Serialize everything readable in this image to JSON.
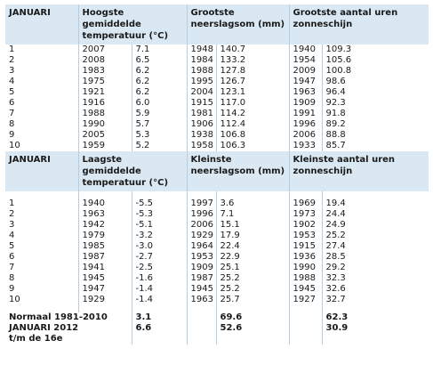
{
  "top": {
    "headers": [
      "JANUARI",
      "Hoogste gemiddelde temperatuur (°C)",
      "Grootste neerslagsom (mm)",
      "Grootste aantal uren zonneschijn"
    ],
    "rows": [
      {
        "rank": "1",
        "t_year": "2007",
        "t_val": "7.1",
        "n_year": "1948",
        "n_val": "140.7",
        "z_year": "1940",
        "z_val": "109.3"
      },
      {
        "rank": "2",
        "t_year": "2008",
        "t_val": "6.5",
        "n_year": "1984",
        "n_val": "133.2",
        "z_year": "1954",
        "z_val": "105.6"
      },
      {
        "rank": "3",
        "t_year": "1983",
        "t_val": "6.2",
        "n_year": "1988",
        "n_val": "127.8",
        "z_year": "2009",
        "z_val": "100.8"
      },
      {
        "rank": "4",
        "t_year": "1975",
        "t_val": "6.2",
        "n_year": "1995",
        "n_val": "126.7",
        "z_year": "1947",
        "z_val": "98.6"
      },
      {
        "rank": "5",
        "t_year": "1921",
        "t_val": "6.2",
        "n_year": "2004",
        "n_val": "123.1",
        "z_year": "1963",
        "z_val": "96.4"
      },
      {
        "rank": "6",
        "t_year": "1916",
        "t_val": "6.0",
        "n_year": "1915",
        "n_val": "117.0",
        "z_year": "1909",
        "z_val": "92.3"
      },
      {
        "rank": "7",
        "t_year": "1988",
        "t_val": "5.9",
        "n_year": "1981",
        "n_val": "114.2",
        "z_year": "1991",
        "z_val": "91.8"
      },
      {
        "rank": "8",
        "t_year": "1990",
        "t_val": "5.7",
        "n_year": "1906",
        "n_val": "112.4",
        "z_year": "1996",
        "z_val": "89.2"
      },
      {
        "rank": "9",
        "t_year": "2005",
        "t_val": "5.3",
        "n_year": "1938",
        "n_val": "106.8",
        "z_year": "2006",
        "z_val": "88.8"
      },
      {
        "rank": "10",
        "t_year": "1959",
        "t_val": "5.2",
        "n_year": "1958",
        "n_val": "106.3",
        "z_year": "1933",
        "z_val": "85.7"
      }
    ]
  },
  "bottom": {
    "headers": [
      "JANUARI",
      "Laagste gemiddelde temperatuur (°C)",
      "Kleinste neerslagsom (mm)",
      "Kleinste aantal uren zonneschijn"
    ],
    "rows": [
      {
        "rank": "1",
        "t_year": "1940",
        "t_val": "-5.5",
        "n_year": "1997",
        "n_val": "3.6",
        "z_year": "1969",
        "z_val": "19.4"
      },
      {
        "rank": "2",
        "t_year": "1963",
        "t_val": "-5.3",
        "n_year": "1996",
        "n_val": "7.1",
        "z_year": "1973",
        "z_val": "24.4"
      },
      {
        "rank": "3",
        "t_year": "1942",
        "t_val": "-5.1",
        "n_year": "2006",
        "n_val": "15.1",
        "z_year": "1902",
        "z_val": "24.9"
      },
      {
        "rank": "4",
        "t_year": "1979",
        "t_val": "-3.2",
        "n_year": "1929",
        "n_val": "17.9",
        "z_year": "1953",
        "z_val": "25.2"
      },
      {
        "rank": "5",
        "t_year": "1985",
        "t_val": "-3.0",
        "n_year": "1964",
        "n_val": "22.4",
        "z_year": "1915",
        "z_val": "27.4"
      },
      {
        "rank": "6",
        "t_year": "1987",
        "t_val": "-2.7",
        "n_year": "1953",
        "n_val": "22.9",
        "z_year": "1936",
        "z_val": "28.5"
      },
      {
        "rank": "7",
        "t_year": "1941",
        "t_val": "-2.5",
        "n_year": "1909",
        "n_val": "25.1",
        "z_year": "1990",
        "z_val": "29.2"
      },
      {
        "rank": "8",
        "t_year": "1945",
        "t_val": "-1.6",
        "n_year": "1987",
        "n_val": "25.2",
        "z_year": "1988",
        "z_val": "32.3"
      },
      {
        "rank": "9",
        "t_year": "1947",
        "t_val": "-1.4",
        "n_year": "1945",
        "n_val": "25.2",
        "z_year": "1945",
        "z_val": "32.6"
      },
      {
        "rank": "10",
        "t_year": "1929",
        "t_val": "-1.4",
        "n_year": "1963",
        "n_val": "25.7",
        "z_year": "1927",
        "z_val": "32.7"
      }
    ]
  },
  "summary": {
    "normaal_label": "Normaal 1981-2010",
    "normaal_temp": "3.1",
    "normaal_neerslag": "69.6",
    "normaal_zon": "62.3",
    "jan2012_label_line1": "JANUARI 2012",
    "jan2012_label_line2": "t/m de 16e",
    "jan2012_temp": "6.6",
    "jan2012_neerslag": "52.6",
    "jan2012_zon": "30.9"
  }
}
